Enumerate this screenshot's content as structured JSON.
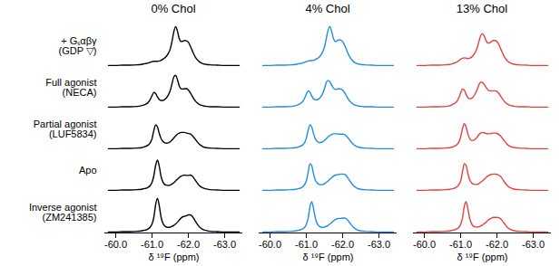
{
  "chart_data": {
    "type": "line",
    "xlabel": "δ ¹⁹F (ppm)",
    "xlim": [
      -59.7,
      -63.5
    ],
    "xticks": [
      {
        "value": -60.0,
        "label": "-60.0"
      },
      {
        "value": -61.0,
        "label": "-61.0"
      },
      {
        "value": -62.0,
        "label": "-62.0"
      },
      {
        "value": -63.0,
        "label": "-63.0"
      }
    ],
    "ylim": [
      0,
      1.2
    ],
    "tick_labels": "x",
    "grid": false,
    "x": [
      -59.8,
      -60.0,
      -60.2,
      -60.4,
      -60.6,
      -60.7,
      -60.8,
      -60.9,
      -60.95,
      -61.0,
      -61.05,
      -61.1,
      -61.15,
      -61.2,
      -61.25,
      -61.3,
      -61.35,
      -61.4,
      -61.45,
      -61.5,
      -61.55,
      -61.6,
      -61.65,
      -61.7,
      -61.75,
      -61.8,
      -61.85,
      -61.9,
      -61.95,
      -62.0,
      -62.05,
      -62.1,
      -62.15,
      -62.2,
      -62.3,
      -62.4,
      -62.5,
      -62.6,
      -62.8,
      -63.0,
      -63.2,
      -63.4
    ],
    "panels": [
      {
        "title": "0% Chol",
        "color": "#000000",
        "series": [
          {
            "name": "+ Gₛαβγ\n(GDP ▽)",
            "values": [
              0.03,
              0.03,
              0.04,
              0.04,
              0.05,
              0.06,
              0.08,
              0.1,
              0.12,
              0.14,
              0.15,
              0.15,
              0.15,
              0.16,
              0.18,
              0.21,
              0.25,
              0.3,
              0.38,
              0.5,
              0.72,
              1.0,
              1.15,
              1.02,
              0.8,
              0.72,
              0.73,
              0.75,
              0.74,
              0.7,
              0.6,
              0.48,
              0.36,
              0.26,
              0.14,
              0.08,
              0.06,
              0.05,
              0.04,
              0.03,
              0.03,
              0.03
            ]
          },
          {
            "name": "Full agonist\n(NECA)",
            "values": [
              0.03,
              0.03,
              0.04,
              0.04,
              0.05,
              0.07,
              0.1,
              0.17,
              0.25,
              0.36,
              0.45,
              0.42,
              0.32,
              0.25,
              0.22,
              0.22,
              0.25,
              0.3,
              0.38,
              0.5,
              0.7,
              0.9,
              0.95,
              0.82,
              0.64,
              0.56,
              0.55,
              0.56,
              0.56,
              0.52,
              0.45,
              0.36,
              0.27,
              0.2,
              0.11,
              0.07,
              0.05,
              0.04,
              0.04,
              0.03,
              0.03,
              0.03
            ]
          },
          {
            "name": "Partial agonist\n(LUF5834)",
            "values": [
              0.03,
              0.03,
              0.04,
              0.04,
              0.05,
              0.06,
              0.09,
              0.14,
              0.2,
              0.32,
              0.55,
              0.72,
              0.66,
              0.47,
              0.32,
              0.24,
              0.2,
              0.19,
              0.2,
              0.23,
              0.28,
              0.34,
              0.4,
              0.45,
              0.48,
              0.5,
              0.5,
              0.5,
              0.48,
              0.47,
              0.46,
              0.42,
              0.36,
              0.29,
              0.16,
              0.09,
              0.06,
              0.05,
              0.04,
              0.03,
              0.03,
              0.03
            ]
          },
          {
            "name": "Apo",
            "values": [
              0.03,
              0.03,
              0.04,
              0.04,
              0.05,
              0.06,
              0.08,
              0.12,
              0.17,
              0.26,
              0.45,
              0.75,
              0.9,
              0.72,
              0.42,
              0.27,
              0.2,
              0.18,
              0.17,
              0.18,
              0.21,
              0.25,
              0.3,
              0.35,
              0.4,
              0.44,
              0.46,
              0.47,
              0.46,
              0.46,
              0.47,
              0.45,
              0.39,
              0.31,
              0.17,
              0.1,
              0.07,
              0.05,
              0.04,
              0.03,
              0.03,
              0.03
            ]
          },
          {
            "name": "Inverse agonist\n(ZM241385)",
            "values": [
              0.03,
              0.03,
              0.04,
              0.04,
              0.05,
              0.06,
              0.08,
              0.12,
              0.17,
              0.26,
              0.45,
              0.82,
              1.0,
              0.78,
              0.45,
              0.28,
              0.2,
              0.17,
              0.16,
              0.17,
              0.19,
              0.22,
              0.26,
              0.31,
              0.37,
              0.43,
              0.47,
              0.48,
              0.5,
              0.52,
              0.52,
              0.49,
              0.42,
              0.33,
              0.18,
              0.1,
              0.07,
              0.05,
              0.04,
              0.03,
              0.03,
              0.03
            ]
          }
        ]
      },
      {
        "title": "4% Chol",
        "color": "#1f8ce6",
        "series": [
          {
            "name": "+ Gₛαβγ\n(GDP ▽)",
            "values": [
              0.03,
              0.03,
              0.04,
              0.04,
              0.05,
              0.06,
              0.08,
              0.1,
              0.12,
              0.14,
              0.16,
              0.17,
              0.17,
              0.18,
              0.2,
              0.23,
              0.27,
              0.33,
              0.42,
              0.56,
              0.8,
              1.05,
              1.15,
              1.0,
              0.8,
              0.72,
              0.74,
              0.77,
              0.76,
              0.72,
              0.62,
              0.5,
              0.37,
              0.27,
              0.14,
              0.08,
              0.06,
              0.05,
              0.04,
              0.03,
              0.03,
              0.03
            ]
          },
          {
            "name": "Full agonist\n(NECA)",
            "values": [
              0.03,
              0.03,
              0.04,
              0.04,
              0.05,
              0.07,
              0.11,
              0.19,
              0.28,
              0.4,
              0.5,
              0.46,
              0.35,
              0.27,
              0.24,
              0.24,
              0.27,
              0.33,
              0.42,
              0.56,
              0.74,
              0.8,
              0.76,
              0.66,
              0.57,
              0.54,
              0.55,
              0.56,
              0.55,
              0.52,
              0.45,
              0.36,
              0.27,
              0.2,
              0.11,
              0.07,
              0.05,
              0.04,
              0.04,
              0.03,
              0.03,
              0.03
            ]
          },
          {
            "name": "Partial agonist\n(LUF5834)",
            "values": [
              0.03,
              0.03,
              0.04,
              0.04,
              0.05,
              0.06,
              0.09,
              0.14,
              0.2,
              0.33,
              0.56,
              0.72,
              0.65,
              0.46,
              0.31,
              0.24,
              0.21,
              0.21,
              0.23,
              0.27,
              0.32,
              0.37,
              0.41,
              0.44,
              0.46,
              0.46,
              0.46,
              0.45,
              0.45,
              0.45,
              0.44,
              0.4,
              0.34,
              0.27,
              0.15,
              0.09,
              0.06,
              0.05,
              0.04,
              0.03,
              0.03,
              0.03
            ]
          },
          {
            "name": "Apo",
            "values": [
              0.03,
              0.03,
              0.04,
              0.04,
              0.05,
              0.06,
              0.08,
              0.13,
              0.19,
              0.3,
              0.55,
              0.8,
              0.74,
              0.5,
              0.32,
              0.24,
              0.2,
              0.19,
              0.2,
              0.22,
              0.26,
              0.3,
              0.35,
              0.4,
              0.44,
              0.47,
              0.48,
              0.49,
              0.5,
              0.5,
              0.49,
              0.45,
              0.38,
              0.3,
              0.16,
              0.09,
              0.06,
              0.05,
              0.04,
              0.03,
              0.03,
              0.03
            ]
          },
          {
            "name": "Inverse agonist\n(ZM241385)",
            "values": [
              0.03,
              0.03,
              0.04,
              0.04,
              0.05,
              0.06,
              0.08,
              0.12,
              0.16,
              0.25,
              0.42,
              0.75,
              0.9,
              0.7,
              0.42,
              0.27,
              0.2,
              0.17,
              0.16,
              0.17,
              0.19,
              0.22,
              0.26,
              0.3,
              0.35,
              0.39,
              0.41,
              0.42,
              0.42,
              0.43,
              0.43,
              0.41,
              0.36,
              0.29,
              0.16,
              0.09,
              0.06,
              0.05,
              0.04,
              0.03,
              0.03,
              0.03
            ]
          }
        ]
      },
      {
        "title": "13% Chol",
        "color": "#e8413b",
        "series": [
          {
            "name": "+ Gₛαβγ\n(GDP ▽)",
            "values": [
              0.03,
              0.03,
              0.04,
              0.04,
              0.05,
              0.06,
              0.09,
              0.13,
              0.17,
              0.21,
              0.24,
              0.25,
              0.24,
              0.23,
              0.24,
              0.27,
              0.32,
              0.4,
              0.52,
              0.7,
              0.88,
              0.95,
              0.88,
              0.75,
              0.68,
              0.68,
              0.72,
              0.75,
              0.75,
              0.72,
              0.64,
              0.52,
              0.4,
              0.29,
              0.15,
              0.09,
              0.06,
              0.05,
              0.04,
              0.03,
              0.03,
              0.03
            ]
          },
          {
            "name": "Full agonist\n(NECA)",
            "values": [
              0.03,
              0.03,
              0.04,
              0.04,
              0.05,
              0.07,
              0.12,
              0.2,
              0.3,
              0.43,
              0.55,
              0.52,
              0.4,
              0.3,
              0.27,
              0.28,
              0.33,
              0.41,
              0.52,
              0.66,
              0.75,
              0.74,
              0.68,
              0.6,
              0.53,
              0.5,
              0.5,
              0.5,
              0.5,
              0.48,
              0.43,
              0.35,
              0.27,
              0.2,
              0.11,
              0.07,
              0.05,
              0.04,
              0.04,
              0.03,
              0.03,
              0.03
            ]
          },
          {
            "name": "Partial agonist\n(LUF5834)",
            "values": [
              0.03,
              0.03,
              0.04,
              0.04,
              0.05,
              0.06,
              0.09,
              0.15,
              0.22,
              0.36,
              0.6,
              0.75,
              0.66,
              0.46,
              0.32,
              0.27,
              0.27,
              0.3,
              0.36,
              0.43,
              0.48,
              0.5,
              0.49,
              0.47,
              0.46,
              0.46,
              0.47,
              0.48,
              0.48,
              0.47,
              0.44,
              0.4,
              0.33,
              0.26,
              0.14,
              0.08,
              0.06,
              0.05,
              0.04,
              0.03,
              0.03,
              0.03
            ]
          },
          {
            "name": "Apo",
            "values": [
              0.03,
              0.03,
              0.04,
              0.04,
              0.05,
              0.06,
              0.08,
              0.13,
              0.19,
              0.3,
              0.55,
              0.8,
              0.75,
              0.52,
              0.33,
              0.25,
              0.21,
              0.2,
              0.2,
              0.22,
              0.26,
              0.3,
              0.35,
              0.4,
              0.44,
              0.47,
              0.49,
              0.5,
              0.5,
              0.49,
              0.47,
              0.43,
              0.36,
              0.28,
              0.15,
              0.09,
              0.06,
              0.05,
              0.04,
              0.03,
              0.03,
              0.03
            ]
          },
          {
            "name": "Inverse agonist\n(ZM241385)",
            "values": [
              0.03,
              0.03,
              0.04,
              0.04,
              0.05,
              0.06,
              0.08,
              0.12,
              0.16,
              0.25,
              0.42,
              0.76,
              0.9,
              0.7,
              0.42,
              0.27,
              0.2,
              0.18,
              0.17,
              0.18,
              0.2,
              0.23,
              0.27,
              0.31,
              0.36,
              0.4,
              0.43,
              0.45,
              0.45,
              0.45,
              0.44,
              0.41,
              0.35,
              0.28,
              0.15,
              0.09,
              0.06,
              0.05,
              0.04,
              0.03,
              0.03,
              0.03
            ]
          }
        ]
      }
    ]
  }
}
